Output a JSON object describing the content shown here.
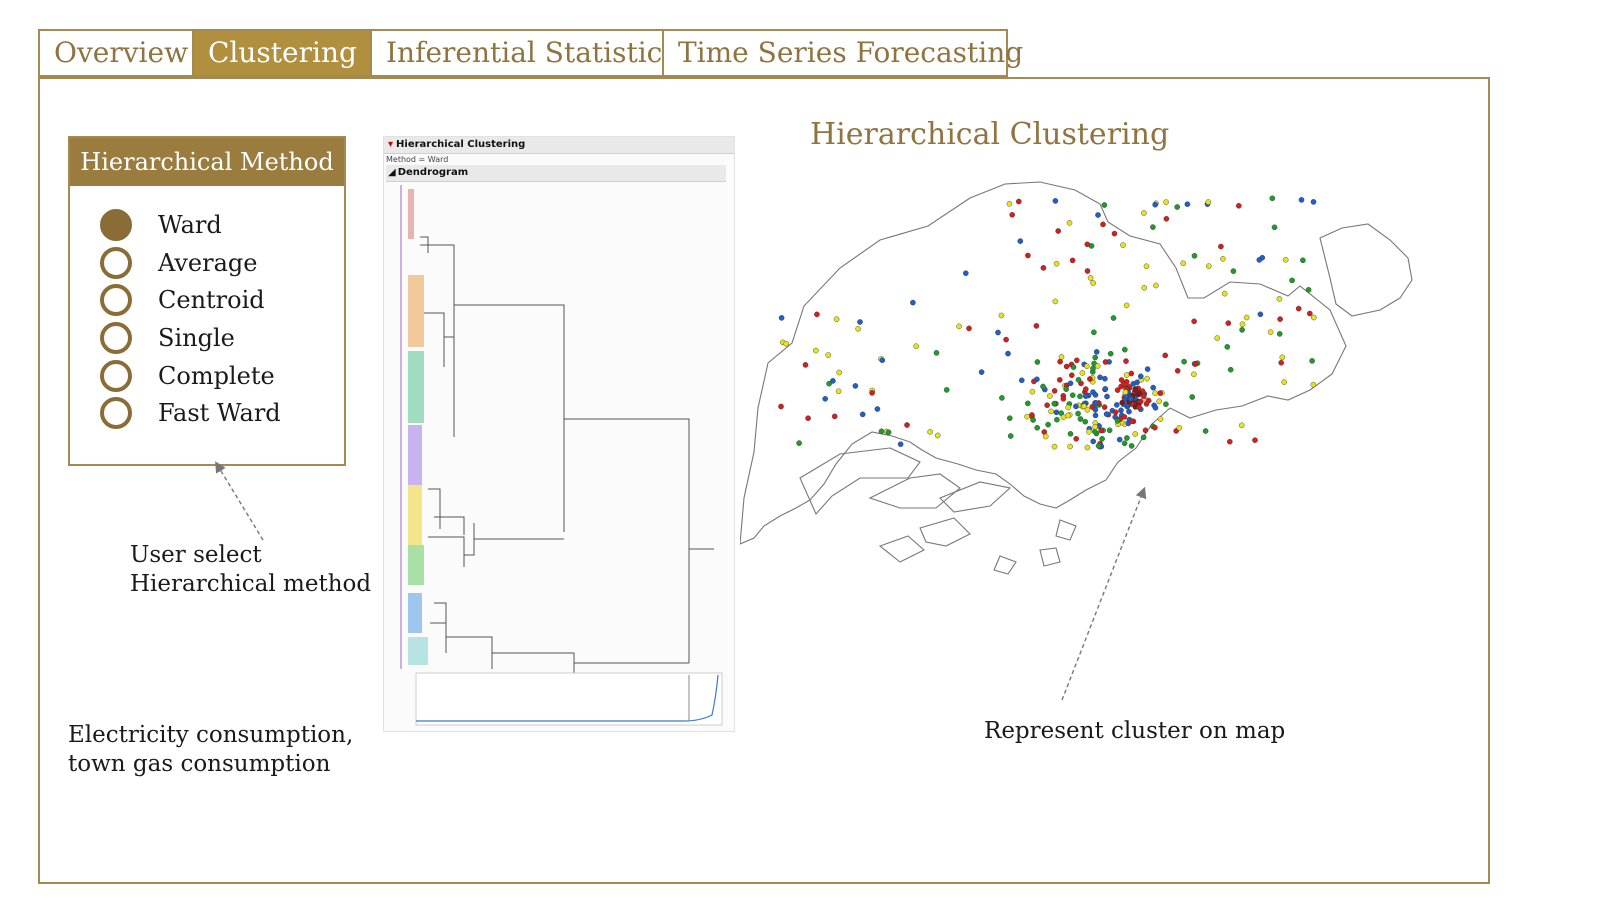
{
  "tabs": [
    {
      "label": "Overview",
      "active": false
    },
    {
      "label": "Clustering",
      "active": true
    },
    {
      "label": "Inferential Statistics",
      "active": false
    },
    {
      "label": "Time Series Forecasting",
      "active": false
    }
  ],
  "method_panel": {
    "header": "Hierarchical Method",
    "selected": "Ward",
    "options": [
      "Ward",
      "Average",
      "Centroid",
      "Single",
      "Complete",
      "Fast Ward"
    ]
  },
  "annotations": {
    "user_select_line1": "User select",
    "user_select_line2": "Hierarchical method",
    "variables_line1": "Electricity consumption,",
    "variables_line2": "town gas consumption",
    "map_caption": "Represent cluster on map"
  },
  "dendrogram": {
    "title": "Hierarchical Clustering",
    "method_text": "Method = Ward",
    "section": "Dendrogram"
  },
  "map": {
    "title": "Hierarchical Clustering"
  },
  "colors": {
    "accent": "#b08f3f",
    "accent_dark": "#8a6d36",
    "tab_text": "#8f7440",
    "cluster_red": "#d41f1f",
    "cluster_blue": "#1f5fc9",
    "cluster_green": "#1f9b2a",
    "cluster_yellow": "#e8e21a"
  }
}
